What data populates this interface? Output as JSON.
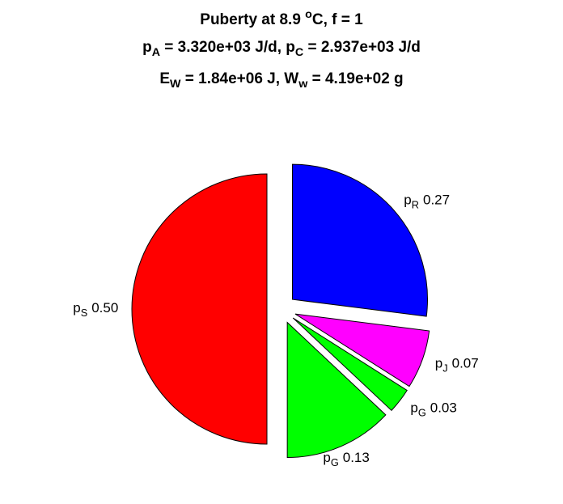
{
  "chart_data": {
    "type": "pie",
    "title": [
      "Puberty at 8.9 ^oC, f = 1",
      "p_A = 3.320e+03 J/d,  p_C = 2.937e+03 J/d",
      "E_W = 1.84e+06 J, W_w = 4.19e+02 g"
    ],
    "categories": [
      "p_R",
      "p_J",
      "p_G",
      "p_G",
      "p_S"
    ],
    "values": [
      0.27,
      0.07,
      0.03,
      0.13,
      0.5
    ],
    "value_labels": [
      "0.27",
      "0.07",
      "0.03",
      "0.13",
      "0.50"
    ],
    "colors": [
      "#0000ff",
      "#ff00ff",
      "#00ff00",
      "#00ff00",
      "#ff0000"
    ],
    "exploded": true
  }
}
